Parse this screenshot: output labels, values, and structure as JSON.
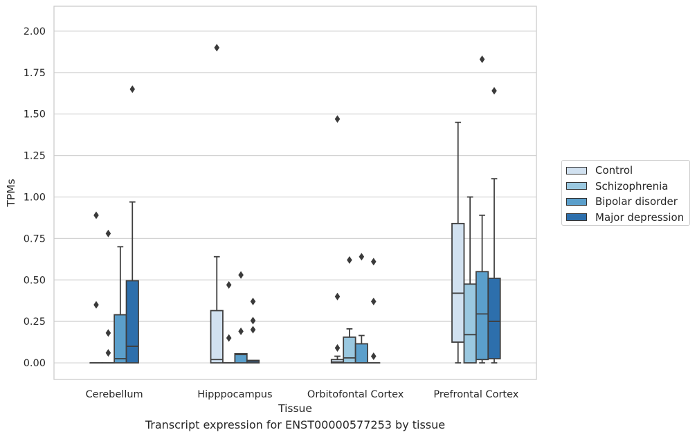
{
  "caption": "Transcript expression for ENST00000577253 by tissue",
  "chart_data": {
    "type": "boxplot",
    "title": "",
    "xlabel": "Tissue",
    "ylabel": "TPMs",
    "ylim": [
      -0.1,
      2.15
    ],
    "yticks": [
      "0.00",
      "0.25",
      "0.50",
      "0.75",
      "1.00",
      "1.25",
      "1.50",
      "1.75",
      "2.00"
    ],
    "grid": "horizontal",
    "legend_position": "right",
    "categories": [
      "Cerebellum",
      "Hipppocampus",
      "Orbitofontal Cortex",
      "Prefrontal Cortex"
    ],
    "series": [
      {
        "name": "Control",
        "color": "#d1e1f0",
        "boxes": [
          {
            "q1": 0,
            "median": 0,
            "q3": 0,
            "whisker_low": 0,
            "whisker_high": 0,
            "outliers": [
              0.89,
              0.35
            ]
          },
          {
            "q1": 0,
            "median": 0.02,
            "q3": 0.315,
            "whisker_low": 0,
            "whisker_high": 0.64,
            "outliers": [
              1.9
            ]
          },
          {
            "q1": 0,
            "median": 0.005,
            "q3": 0.02,
            "whisker_low": 0,
            "whisker_high": 0.04,
            "outliers": [
              1.47,
              0.4,
              0.09
            ]
          },
          {
            "q1": 0.125,
            "median": 0.42,
            "q3": 0.84,
            "whisker_low": 0,
            "whisker_high": 1.45,
            "outliers": []
          }
        ]
      },
      {
        "name": "Schizophrenia",
        "color": "#9ac8e0",
        "boxes": [
          {
            "q1": 0,
            "median": 0,
            "q3": 0,
            "whisker_low": 0,
            "whisker_high": 0,
            "outliers": [
              0.78,
              0.18,
              0.06
            ]
          },
          {
            "q1": 0,
            "median": 0,
            "q3": 0,
            "whisker_low": 0,
            "whisker_high": 0,
            "outliers": [
              0.47,
              0.15
            ]
          },
          {
            "q1": 0,
            "median": 0.03,
            "q3": 0.155,
            "whisker_low": 0,
            "whisker_high": 0.205,
            "outliers": [
              0.62
            ]
          },
          {
            "q1": 0,
            "median": 0.17,
            "q3": 0.475,
            "whisker_low": 0,
            "whisker_high": 1.0,
            "outliers": []
          }
        ]
      },
      {
        "name": "Bipolar disorder",
        "color": "#5b9fcb",
        "boxes": [
          {
            "q1": 0,
            "median": 0.025,
            "q3": 0.29,
            "whisker_low": 0,
            "whisker_high": 0.7,
            "outliers": []
          },
          {
            "q1": 0,
            "median": 0.05,
            "q3": 0.055,
            "whisker_low": 0,
            "whisker_high": 0.055,
            "outliers": [
              0.53,
              0.19
            ]
          },
          {
            "q1": 0,
            "median": 0,
            "q3": 0.115,
            "whisker_low": 0,
            "whisker_high": 0.165,
            "outliers": [
              0.64
            ]
          },
          {
            "q1": 0.02,
            "median": 0.295,
            "q3": 0.55,
            "whisker_low": 0,
            "whisker_high": 0.89,
            "outliers": [
              1.83
            ]
          }
        ]
      },
      {
        "name": "Major depression",
        "color": "#2d6fac",
        "boxes": [
          {
            "q1": 0,
            "median": 0.1,
            "q3": 0.495,
            "whisker_low": 0,
            "whisker_high": 0.97,
            "outliers": [
              1.65
            ]
          },
          {
            "q1": 0,
            "median": 0.01,
            "q3": 0.015,
            "whisker_low": 0,
            "whisker_high": 0.015,
            "outliers": [
              0.37,
              0.255,
              0.2
            ]
          },
          {
            "q1": 0,
            "median": 0,
            "q3": 0,
            "whisker_low": 0,
            "whisker_high": 0,
            "outliers": [
              0.61,
              0.37,
              0.04
            ]
          },
          {
            "q1": 0.025,
            "median": 0.25,
            "q3": 0.51,
            "whisker_low": 0,
            "whisker_high": 1.11,
            "outliers": [
              1.64
            ]
          }
        ]
      }
    ]
  }
}
